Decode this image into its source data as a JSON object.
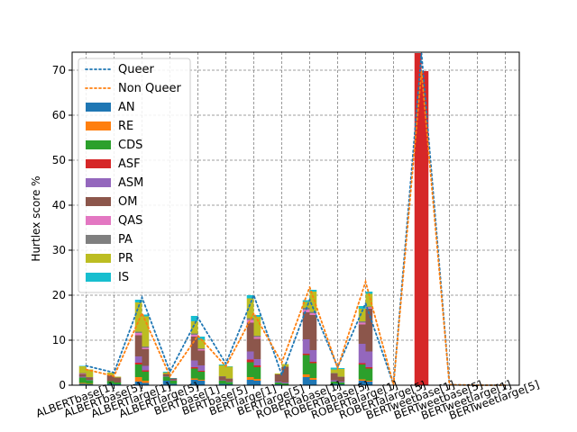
{
  "chart_data": {
    "type": "bar",
    "stacked": true,
    "ylabel": "Hurtlex score %",
    "xlabel": "",
    "title": "",
    "ylim": [
      0,
      74
    ],
    "yticks": [
      0,
      10,
      20,
      30,
      40,
      50,
      60,
      70
    ],
    "grid": true,
    "legend_position": "upper-left",
    "categories": [
      "ALBERTbase[1]",
      "ALBERTbase[5]",
      "ALBERTlarge[1]",
      "ALBERTlarge[5]",
      "BERTbase[1]",
      "BERTbase[5]",
      "BERTlarge[1]",
      "BERTlarge[5]",
      "ROBERTabase[1]",
      "ROBERTabase[5]",
      "ROBERTalarge[1]",
      "ROBERTalarge[5]",
      "BERTweetbase[1]",
      "BERTweetbase[5]",
      "BERTweetlarge[1]",
      "BERTweetlarge[5]"
    ],
    "series": [
      {
        "name": "AN",
        "color": "#1f77b4",
        "queer": [
          0.3,
          0.3,
          0.8,
          1.0,
          1.2,
          0.3,
          1.2,
          0.2,
          1.8,
          0.3,
          1.0,
          0.0,
          0.0,
          0.0,
          0.0,
          0.0
        ],
        "nonqueer": [
          0.2,
          0.2,
          0.5,
          0.3,
          1.0,
          0.2,
          1.0,
          0.1,
          1.2,
          0.2,
          0.8,
          0.0,
          0.0,
          0.0,
          0.0,
          0.0
        ]
      },
      {
        "name": "RE",
        "color": "#ff7f0e",
        "queer": [
          0.2,
          0.0,
          1.0,
          0.0,
          0.3,
          0.0,
          0.6,
          0.0,
          0.6,
          0.0,
          0.3,
          0.0,
          0.0,
          0.0,
          0.0,
          0.0
        ],
        "nonqueer": [
          0.1,
          0.0,
          0.5,
          0.0,
          0.2,
          0.0,
          0.4,
          0.0,
          0.4,
          0.0,
          0.2,
          0.0,
          0.0,
          0.0,
          0.0,
          0.0
        ]
      },
      {
        "name": "CDS",
        "color": "#2ca02c",
        "queer": [
          1.2,
          0.6,
          2.8,
          0.9,
          2.2,
          0.7,
          3.3,
          0.4,
          4.3,
          0.5,
          3.3,
          0.0,
          0.0,
          0.0,
          0.0,
          0.0
        ],
        "nonqueer": [
          0.8,
          0.4,
          2.0,
          0.7,
          1.8,
          0.5,
          2.6,
          0.3,
          3.3,
          0.4,
          2.7,
          0.0,
          0.0,
          0.0,
          0.0,
          0.0
        ]
      },
      {
        "name": "ASF",
        "color": "#d62728",
        "queer": [
          0.0,
          0.0,
          0.4,
          0.0,
          0.3,
          0.0,
          0.6,
          0.0,
          0.3,
          0.0,
          0.3,
          0.0,
          73.8,
          0.0,
          0.0,
          0.0
        ],
        "nonqueer": [
          0.0,
          0.0,
          0.3,
          0.0,
          0.2,
          0.0,
          0.4,
          0.0,
          0.3,
          0.0,
          0.3,
          0.0,
          69.8,
          0.0,
          0.0,
          0.0
        ]
      },
      {
        "name": "ASM",
        "color": "#9467bd",
        "queer": [
          0.2,
          0.0,
          1.4,
          0.1,
          1.5,
          0.1,
          1.8,
          0.2,
          3.2,
          0.3,
          4.3,
          0.0,
          0.0,
          0.0,
          0.0,
          0.0
        ],
        "nonqueer": [
          0.1,
          0.0,
          1.0,
          0.1,
          1.2,
          0.1,
          1.4,
          0.2,
          2.6,
          0.2,
          3.5,
          0.0,
          0.0,
          0.0,
          0.0,
          0.0
        ]
      },
      {
        "name": "OM",
        "color": "#8c564b",
        "queer": [
          0.6,
          1.3,
          4.7,
          0.5,
          5.3,
          0.8,
          6.4,
          1.6,
          6.0,
          1.5,
          4.3,
          0.0,
          0.0,
          0.0,
          0.0,
          0.0
        ],
        "nonqueer": [
          0.5,
          1.1,
          3.7,
          0.4,
          3.3,
          0.6,
          4.5,
          3.5,
          7.8,
          1.0,
          9.5,
          0.0,
          0.0,
          0.0,
          0.0,
          0.0
        ]
      },
      {
        "name": "QAS",
        "color": "#e377c2",
        "queer": [
          0.1,
          0.0,
          0.5,
          0.0,
          0.4,
          0.0,
          0.6,
          0.0,
          0.6,
          0.0,
          0.4,
          0.0,
          0.0,
          0.0,
          0.0,
          0.0
        ],
        "nonqueer": [
          0.0,
          0.0,
          0.3,
          0.0,
          0.3,
          0.0,
          0.4,
          0.0,
          0.4,
          0.0,
          0.3,
          0.0,
          0.0,
          0.0,
          0.0,
          0.0
        ]
      },
      {
        "name": "PA",
        "color": "#7f7f7f",
        "queer": [
          0.1,
          0.0,
          0.3,
          0.0,
          0.3,
          0.1,
          0.4,
          0.0,
          0.4,
          0.1,
          0.3,
          0.0,
          0.0,
          0.0,
          0.0,
          0.0
        ],
        "nonqueer": [
          0.1,
          0.0,
          0.3,
          0.0,
          0.2,
          0.1,
          0.3,
          0.0,
          0.3,
          0.1,
          0.2,
          0.0,
          0.0,
          0.0,
          0.0,
          0.0
        ]
      },
      {
        "name": "PR",
        "color": "#bcbd22",
        "queer": [
          1.5,
          0.6,
          6.5,
          0.3,
          2.7,
          2.4,
          4.4,
          0.2,
          1.3,
          0.8,
          2.8,
          0.0,
          0.0,
          0.0,
          0.0,
          0.0
        ],
        "nonqueer": [
          1.7,
          0.2,
          6.7,
          0.0,
          1.9,
          2.6,
          4.2,
          0.6,
          4.5,
          1.7,
          2.8,
          0.0,
          0.0,
          0.0,
          0.0,
          0.0
        ]
      },
      {
        "name": "IS",
        "color": "#17becf",
        "queer": [
          0.1,
          0.0,
          0.6,
          0.2,
          1.2,
          0.2,
          0.7,
          0.0,
          0.4,
          0.4,
          0.6,
          0.0,
          0.0,
          0.0,
          0.0,
          0.0
        ],
        "nonqueer": [
          0.0,
          0.0,
          0.4,
          0.1,
          0.7,
          0.1,
          0.4,
          0.0,
          0.4,
          0.2,
          0.5,
          0.0,
          0.0,
          0.0,
          0.0,
          0.0
        ]
      }
    ],
    "lines": [
      {
        "name": "Queer",
        "color": "#1f77b4",
        "style": "dotted",
        "values": [
          4.3,
          2.8,
          19.5,
          3.0,
          15.0,
          4.8,
          20.0,
          2.3,
          19.0,
          4.0,
          18.2,
          0.1,
          73.8,
          0.1,
          0.0,
          0.0
        ]
      },
      {
        "name": "Non Queer",
        "color": "#ff7f0e",
        "style": "dotted",
        "values": [
          3.5,
          2.0,
          16.0,
          2.0,
          11.0,
          4.2,
          16.0,
          5.0,
          21.8,
          3.8,
          23.0,
          0.1,
          69.8,
          0.1,
          0.0,
          0.0
        ]
      }
    ]
  }
}
